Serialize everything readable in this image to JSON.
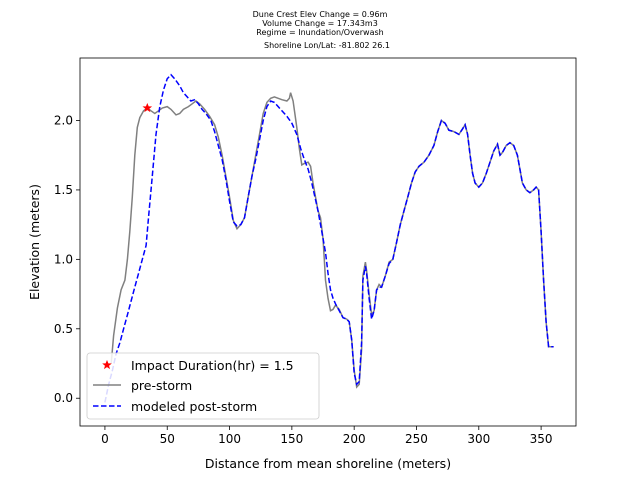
{
  "chart_data": {
    "type": "line",
    "title_lines": [
      "Dune Crest Elev Change = 0.96m",
      "Volume Change = 17.343m3",
      "Regime = Inundation/Overwash",
      "Shoreline Lon/Lat: -81.802 26.1"
    ],
    "xlabel": "Distance from mean shoreline (meters)",
    "ylabel": "Elevation (meters)",
    "xlim": [
      -20,
      378
    ],
    "ylim": [
      -0.2,
      2.45
    ],
    "xticks": [
      0,
      50,
      100,
      150,
      200,
      250,
      300,
      350
    ],
    "yticks": [
      0.0,
      0.5,
      1.0,
      1.5,
      2.0
    ],
    "xtick_labels": [
      "0",
      "50",
      "100",
      "150",
      "200",
      "250",
      "300",
      "350"
    ],
    "ytick_labels": [
      "0.0",
      "0.5",
      "1.0",
      "1.5",
      "2.0"
    ],
    "legend_position": "lower-left",
    "marker": {
      "name": "Impact Duration(hr) = 1.5",
      "x": 34,
      "y": 2.09,
      "color": "#ff0000"
    },
    "series": [
      {
        "name": "pre-storm",
        "color": "#808080",
        "style": "solid",
        "points": [
          [
            5,
            0.25
          ],
          [
            7,
            0.45
          ],
          [
            10,
            0.65
          ],
          [
            13,
            0.78
          ],
          [
            16,
            0.85
          ],
          [
            18,
            1.0
          ],
          [
            20,
            1.2
          ],
          [
            22,
            1.45
          ],
          [
            24,
            1.75
          ],
          [
            26,
            1.95
          ],
          [
            28,
            2.02
          ],
          [
            31,
            2.07
          ],
          [
            34,
            2.09
          ],
          [
            37,
            2.07
          ],
          [
            40,
            2.05
          ],
          [
            43,
            2.07
          ],
          [
            46,
            2.09
          ],
          [
            50,
            2.1
          ],
          [
            53,
            2.08
          ],
          [
            57,
            2.04
          ],
          [
            60,
            2.05
          ],
          [
            63,
            2.08
          ],
          [
            67,
            2.1
          ],
          [
            70,
            2.12
          ],
          [
            73,
            2.14
          ],
          [
            76,
            2.12
          ],
          [
            80,
            2.08
          ],
          [
            84,
            2.03
          ],
          [
            88,
            1.97
          ],
          [
            91,
            1.88
          ],
          [
            94,
            1.75
          ],
          [
            97,
            1.6
          ],
          [
            100,
            1.45
          ],
          [
            103,
            1.28
          ],
          [
            106,
            1.22
          ],
          [
            109,
            1.25
          ],
          [
            112,
            1.3
          ],
          [
            115,
            1.45
          ],
          [
            118,
            1.6
          ],
          [
            121,
            1.75
          ],
          [
            124,
            1.9
          ],
          [
            127,
            2.05
          ],
          [
            130,
            2.13
          ],
          [
            133,
            2.16
          ],
          [
            136,
            2.17
          ],
          [
            139,
            2.16
          ],
          [
            142,
            2.15
          ],
          [
            146,
            2.14
          ],
          [
            148,
            2.16
          ],
          [
            149,
            2.2
          ],
          [
            151,
            2.14
          ],
          [
            154,
            1.95
          ],
          [
            156,
            1.8
          ],
          [
            158,
            1.68
          ],
          [
            160,
            1.69
          ],
          [
            163,
            1.7
          ],
          [
            165,
            1.67
          ],
          [
            167,
            1.55
          ],
          [
            169,
            1.45
          ],
          [
            171,
            1.35
          ],
          [
            173,
            1.3
          ],
          [
            175,
            1.15
          ],
          [
            176,
            1.0
          ],
          [
            177,
            0.85
          ],
          [
            179,
            0.72
          ],
          [
            181,
            0.63
          ],
          [
            183,
            0.64
          ],
          [
            185,
            0.67
          ],
          [
            188,
            0.64
          ],
          [
            191,
            0.58
          ],
          [
            194,
            0.57
          ],
          [
            196,
            0.55
          ],
          [
            198,
            0.42
          ],
          [
            200,
            0.2
          ],
          [
            202,
            0.08
          ],
          [
            204,
            0.1
          ],
          [
            206,
            0.35
          ],
          [
            207,
            0.88
          ],
          [
            209,
            0.98
          ],
          [
            210,
            0.92
          ],
          [
            212,
            0.75
          ],
          [
            214,
            0.6
          ],
          [
            216,
            0.63
          ],
          [
            218,
            0.78
          ],
          [
            220,
            0.82
          ],
          [
            222,
            0.8
          ],
          [
            225,
            0.88
          ],
          [
            228,
            0.98
          ],
          [
            231,
            1.0
          ],
          [
            234,
            1.12
          ],
          [
            237,
            1.25
          ],
          [
            240,
            1.35
          ],
          [
            243,
            1.45
          ],
          [
            246,
            1.55
          ],
          [
            249,
            1.63
          ],
          [
            252,
            1.67
          ],
          [
            256,
            1.7
          ],
          [
            260,
            1.75
          ],
          [
            264,
            1.82
          ],
          [
            267,
            1.92
          ],
          [
            270,
            2.0
          ],
          [
            273,
            1.98
          ],
          [
            276,
            1.93
          ],
          [
            280,
            1.92
          ],
          [
            284,
            1.9
          ],
          [
            287,
            1.94
          ],
          [
            289,
            1.97
          ],
          [
            291,
            1.9
          ],
          [
            293,
            1.75
          ],
          [
            295,
            1.62
          ],
          [
            297,
            1.55
          ],
          [
            300,
            1.52
          ],
          [
            303,
            1.55
          ],
          [
            306,
            1.62
          ],
          [
            309,
            1.7
          ],
          [
            312,
            1.78
          ],
          [
            315,
            1.83
          ],
          [
            317,
            1.75
          ],
          [
            319,
            1.77
          ],
          [
            322,
            1.82
          ],
          [
            325,
            1.84
          ],
          [
            328,
            1.82
          ],
          [
            331,
            1.75
          ],
          [
            333,
            1.65
          ],
          [
            335,
            1.55
          ],
          [
            338,
            1.5
          ],
          [
            341,
            1.48
          ],
          [
            344,
            1.5
          ],
          [
            346,
            1.52
          ],
          [
            348,
            1.5
          ],
          [
            350,
            1.2
          ],
          [
            352,
            0.85
          ],
          [
            354,
            0.55
          ],
          [
            356,
            0.37
          ],
          [
            360,
            0.37
          ]
        ]
      },
      {
        "name": "modeled post-storm",
        "color": "#0000ff",
        "style": "dashed",
        "points": [
          [
            0,
            -0.03
          ],
          [
            3,
            0.1
          ],
          [
            6,
            0.2
          ],
          [
            9,
            0.32
          ],
          [
            12,
            0.4
          ],
          [
            15,
            0.5
          ],
          [
            18,
            0.6
          ],
          [
            21,
            0.7
          ],
          [
            24,
            0.8
          ],
          [
            27,
            0.9
          ],
          [
            30,
            1.0
          ],
          [
            33,
            1.1
          ],
          [
            35,
            1.3
          ],
          [
            38,
            1.6
          ],
          [
            41,
            1.9
          ],
          [
            44,
            2.1
          ],
          [
            47,
            2.22
          ],
          [
            50,
            2.3
          ],
          [
            53,
            2.33
          ],
          [
            56,
            2.3
          ],
          [
            60,
            2.25
          ],
          [
            63,
            2.2
          ],
          [
            66,
            2.17
          ],
          [
            69,
            2.14
          ],
          [
            72,
            2.15
          ],
          [
            75,
            2.12
          ],
          [
            78,
            2.08
          ],
          [
            81,
            2.05
          ],
          [
            85,
            2.0
          ],
          [
            88,
            1.92
          ],
          [
            91,
            1.82
          ],
          [
            94,
            1.72
          ],
          [
            97,
            1.58
          ],
          [
            100,
            1.42
          ],
          [
            103,
            1.27
          ],
          [
            106,
            1.24
          ],
          [
            109,
            1.25
          ],
          [
            112,
            1.3
          ],
          [
            115,
            1.45
          ],
          [
            118,
            1.6
          ],
          [
            121,
            1.72
          ],
          [
            124,
            1.86
          ],
          [
            127,
            2.0
          ],
          [
            130,
            2.1
          ],
          [
            133,
            2.14
          ],
          [
            136,
            2.13
          ],
          [
            139,
            2.1
          ],
          [
            142,
            2.07
          ],
          [
            146,
            2.03
          ],
          [
            150,
            1.98
          ],
          [
            154,
            1.9
          ],
          [
            157,
            1.8
          ],
          [
            160,
            1.72
          ],
          [
            163,
            1.65
          ],
          [
            166,
            1.55
          ],
          [
            169,
            1.43
          ],
          [
            171,
            1.35
          ],
          [
            174,
            1.2
          ],
          [
            177,
            1.05
          ],
          [
            179,
            0.9
          ],
          [
            181,
            0.78
          ],
          [
            183,
            0.72
          ],
          [
            185,
            0.68
          ],
          [
            188,
            0.63
          ],
          [
            191,
            0.58
          ],
          [
            194,
            0.57
          ],
          [
            196,
            0.55
          ],
          [
            198,
            0.42
          ],
          [
            200,
            0.18
          ],
          [
            202,
            0.1
          ],
          [
            204,
            0.12
          ],
          [
            206,
            0.4
          ],
          [
            207,
            0.85
          ],
          [
            209,
            0.95
          ],
          [
            210,
            0.9
          ],
          [
            212,
            0.72
          ],
          [
            214,
            0.57
          ],
          [
            216,
            0.63
          ],
          [
            218,
            0.78
          ],
          [
            220,
            0.8
          ],
          [
            222,
            0.8
          ],
          [
            225,
            0.88
          ],
          [
            228,
            0.97
          ],
          [
            231,
            1.0
          ],
          [
            234,
            1.12
          ],
          [
            237,
            1.25
          ],
          [
            240,
            1.35
          ],
          [
            243,
            1.45
          ],
          [
            246,
            1.55
          ],
          [
            249,
            1.63
          ],
          [
            252,
            1.67
          ],
          [
            256,
            1.7
          ],
          [
            260,
            1.75
          ],
          [
            264,
            1.82
          ],
          [
            267,
            1.92
          ],
          [
            270,
            2.0
          ],
          [
            273,
            1.98
          ],
          [
            276,
            1.93
          ],
          [
            280,
            1.92
          ],
          [
            284,
            1.9
          ],
          [
            287,
            1.94
          ],
          [
            289,
            1.97
          ],
          [
            291,
            1.9
          ],
          [
            293,
            1.75
          ],
          [
            295,
            1.62
          ],
          [
            297,
            1.55
          ],
          [
            300,
            1.52
          ],
          [
            303,
            1.55
          ],
          [
            306,
            1.62
          ],
          [
            309,
            1.7
          ],
          [
            312,
            1.78
          ],
          [
            315,
            1.83
          ],
          [
            317,
            1.75
          ],
          [
            319,
            1.77
          ],
          [
            322,
            1.82
          ],
          [
            325,
            1.84
          ],
          [
            328,
            1.82
          ],
          [
            331,
            1.75
          ],
          [
            333,
            1.65
          ],
          [
            335,
            1.55
          ],
          [
            338,
            1.5
          ],
          [
            341,
            1.48
          ],
          [
            344,
            1.5
          ],
          [
            346,
            1.52
          ],
          [
            348,
            1.5
          ],
          [
            350,
            1.2
          ],
          [
            352,
            0.85
          ],
          [
            354,
            0.55
          ],
          [
            356,
            0.37
          ],
          [
            360,
            0.37
          ]
        ]
      }
    ]
  }
}
